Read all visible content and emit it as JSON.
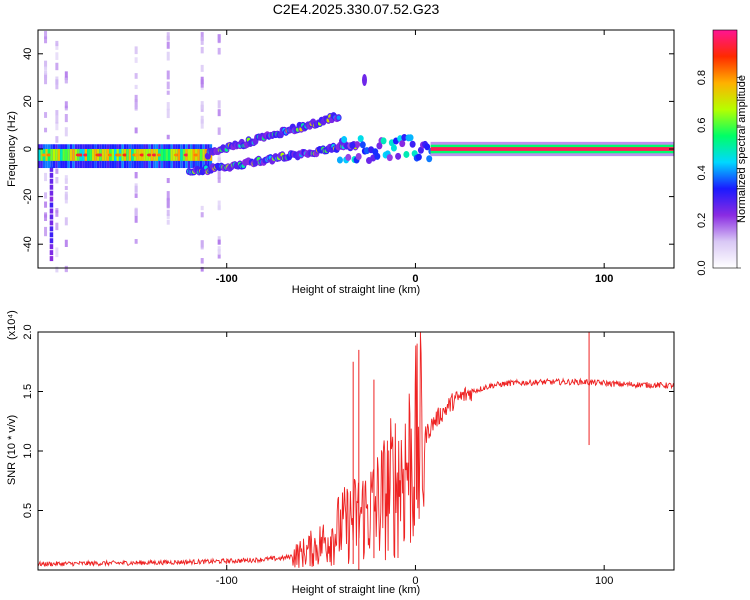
{
  "title": "C2E4.2025.330.07.52.G23",
  "chart_data": [
    {
      "type": "heatmap",
      "name": "spectrogram",
      "xlabel": "Height of straight line (km)",
      "ylabel": "Frequency (Hz)",
      "xlim": [
        -200,
        137
      ],
      "ylim": [
        -50,
        50
      ],
      "xticks": [
        -100,
        0,
        100
      ],
      "yticks": [
        -40,
        -20,
        0,
        20,
        40
      ],
      "colorbar": {
        "label": "Normalized spectral amplitude",
        "range": [
          0,
          1
        ],
        "ticks": [
          "0.0",
          "0.2",
          "0.4",
          "0.6",
          "0.8"
        ],
        "colors": [
          "#ffffff",
          "#d9c8f5",
          "#8a2be2",
          "#1a1aff",
          "#00d8ff",
          "#00ff66",
          "#b6ff00",
          "#ffb000",
          "#ff2a00",
          "#ff1493"
        ]
      },
      "features": [
        {
          "segment": "steady carrier",
          "x_range": [
            8,
            137
          ],
          "frequency": 0,
          "amplitude": 0.95
        },
        {
          "segment": "noisy band",
          "x_range": [
            -200,
            -110
          ],
          "frequency": -3,
          "amplitude": 0.6
        },
        {
          "segment": "lower branch",
          "x_range": [
            -120,
            -30
          ],
          "frequency_start": -10,
          "frequency_end": 2,
          "amplitude": 0.4
        },
        {
          "segment": "upper branch",
          "x_range": [
            -110,
            -40
          ],
          "frequency_start": -2,
          "frequency_end": 14,
          "amplitude": 0.4
        },
        {
          "segment": "transition",
          "x_range": [
            -40,
            10
          ],
          "frequency": 0,
          "amplitude": 0.5
        }
      ]
    },
    {
      "type": "line",
      "name": "snr",
      "xlabel": "Height of straight line (km)",
      "ylabel": "SNR (10 * v/v)",
      "y_multiplier": "(x10⁴)",
      "xlim": [
        -200,
        137
      ],
      "ylim": [
        0,
        2.0
      ],
      "xticks": [
        -100,
        0,
        100
      ],
      "yticks": [
        0.5,
        1.0,
        1.5,
        2.0
      ],
      "ytick_labels": [
        "0.5",
        "1.0",
        "1.5",
        "2.0"
      ],
      "color": "#ee2222",
      "envelope": {
        "x": [
          -200,
          -150,
          -110,
          -90,
          -70,
          -60,
          -50,
          -40,
          -30,
          -20,
          -10,
          0,
          10,
          20,
          30,
          40,
          50,
          70,
          90,
          110,
          137
        ],
        "y": [
          0.05,
          0.06,
          0.07,
          0.08,
          0.1,
          0.14,
          0.22,
          0.35,
          0.45,
          0.55,
          0.75,
          1.0,
          1.25,
          1.42,
          1.5,
          1.55,
          1.57,
          1.58,
          1.58,
          1.56,
          1.55
        ]
      },
      "spikes": [
        {
          "x": 92,
          "max": 2.0,
          "min": 1.05
        },
        {
          "x": -30,
          "max": 1.85,
          "min": 0.0
        },
        {
          "x": -33,
          "max": 1.75,
          "min": 0.05
        },
        {
          "x": -22,
          "max": 1.6,
          "min": 0.1
        }
      ]
    }
  ]
}
